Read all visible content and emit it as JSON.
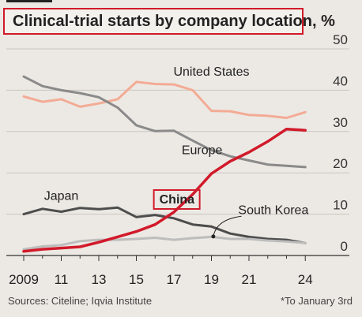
{
  "header": {
    "title": "Clinical-trial starts by company location, %"
  },
  "footer": {
    "sources": "Sources: Citeline; Iqvia Institute",
    "footnote": "*To January 3rd"
  },
  "chart_data": {
    "type": "line",
    "title": "Clinical-trial starts by company location, %",
    "ylim": [
      0,
      50
    ],
    "y_ticks": [
      "0",
      "10",
      "20",
      "30",
      "40",
      "50"
    ],
    "x_ticks": [
      {
        "value": 2009,
        "label": "2009"
      },
      {
        "value": 2011,
        "label": "11"
      },
      {
        "value": 2013,
        "label": "13"
      },
      {
        "value": 2015,
        "label": "15"
      },
      {
        "value": 2017,
        "label": "17"
      },
      {
        "value": 2019,
        "label": "19"
      },
      {
        "value": 2021,
        "label": "21"
      },
      {
        "value": 2024,
        "label": "24"
      }
    ],
    "grid": "horizontal",
    "series": [
      {
        "name": "United States",
        "color": "#f3ab95",
        "width": 3,
        "x": [
          2009,
          2010,
          2011,
          2012,
          2013,
          2014,
          2015,
          2016,
          2017,
          2018,
          2019,
          2020,
          2021,
          2022,
          2023,
          2024
        ],
        "values": [
          38.5,
          37.2,
          37.8,
          36.0,
          36.8,
          37.8,
          42.0,
          41.5,
          41.4,
          40.0,
          35.0,
          34.9,
          34.0,
          33.8,
          33.3,
          34.7
        ]
      },
      {
        "name": "Europe",
        "color": "#8a8a8a",
        "width": 3,
        "x": [
          2009,
          2010,
          2011,
          2012,
          2013,
          2014,
          2015,
          2016,
          2017,
          2018,
          2019,
          2020,
          2021,
          2022,
          2023,
          2024
        ],
        "values": [
          43.3,
          41.0,
          40.0,
          39.3,
          38.3,
          35.8,
          31.5,
          30.1,
          30.2,
          27.8,
          25.5,
          24.0,
          23.0,
          22.0,
          21.7,
          21.4
        ]
      },
      {
        "name": "Japan",
        "color": "#4d4d4d",
        "width": 3,
        "x": [
          2009,
          2010,
          2011,
          2012,
          2013,
          2014,
          2015,
          2016,
          2017,
          2018,
          2019,
          2020,
          2021,
          2022,
          2023,
          2024
        ],
        "values": [
          10.0,
          11.3,
          10.6,
          11.5,
          11.2,
          11.6,
          9.3,
          9.8,
          9.0,
          7.5,
          7.0,
          5.3,
          4.5,
          4.0,
          3.8,
          3.0
        ]
      },
      {
        "name": "South Korea",
        "color": "#bdbdbd",
        "width": 3,
        "x": [
          2009,
          2010,
          2011,
          2012,
          2013,
          2014,
          2015,
          2016,
          2017,
          2018,
          2019,
          2020,
          2021,
          2022,
          2023,
          2024
        ],
        "values": [
          1.5,
          2.2,
          2.5,
          3.5,
          3.8,
          3.8,
          4.0,
          4.3,
          3.8,
          4.2,
          4.5,
          4.0,
          4.0,
          3.6,
          3.4,
          3.0
        ]
      },
      {
        "name": "China",
        "color": "#d11a2a",
        "width": 3.5,
        "x": [
          2009,
          2010,
          2011,
          2012,
          2013,
          2014,
          2015,
          2016,
          2017,
          2018,
          2019,
          2020,
          2021,
          2022,
          2023,
          2024
        ],
        "values": [
          1.0,
          1.5,
          1.8,
          2.1,
          3.2,
          4.5,
          5.8,
          7.5,
          10.5,
          14.8,
          19.8,
          22.8,
          25.0,
          27.6,
          30.6,
          30.3
        ]
      }
    ],
    "annotations": [
      {
        "text": "United States",
        "x": 2019,
        "y": 43.5
      },
      {
        "text": "Europe",
        "x": 2018.5,
        "y": 24.5
      },
      {
        "text": "Japan",
        "x": 2011,
        "y": 13.5
      },
      {
        "text": "China",
        "x": 2016.1,
        "y": 12.6,
        "boxed": true
      },
      {
        "text": "South Korea",
        "x": 2022.3,
        "y": 10.0
      }
    ]
  }
}
